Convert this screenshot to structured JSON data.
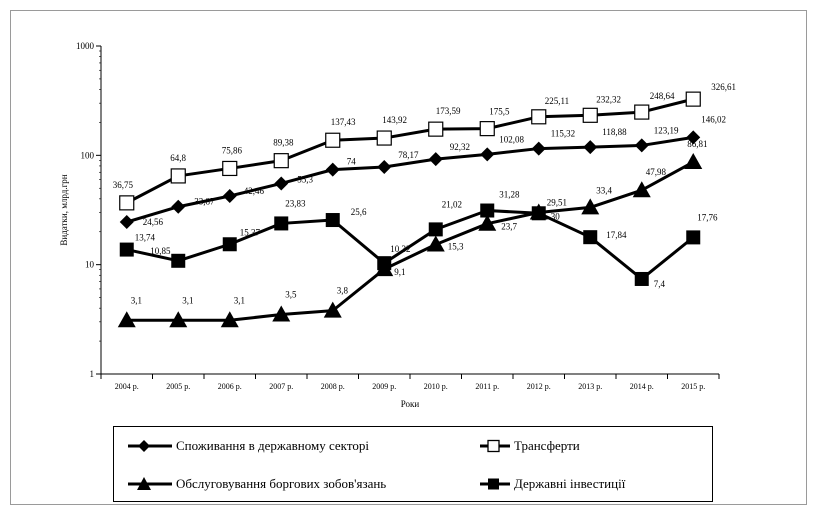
{
  "chart_data": {
    "type": "line",
    "ylabel": "Видатки, млрд.грн",
    "xlabel": "Роки",
    "y_scale": "log",
    "ylim": [
      1,
      1000
    ],
    "y_ticks": [
      "1",
      "10",
      "100",
      "1000"
    ],
    "categories": [
      "2004 р.",
      "2005 р.",
      "2006 р.",
      "2007 р.",
      "2008 р.",
      "2009 р.",
      "2010 р.",
      "2011 р.",
      "2012 р.",
      "2013 р.",
      "2014 р.",
      "2015 р."
    ],
    "series": [
      {
        "name": "Споживання в державному секторі",
        "marker": "diamond",
        "values": [
          24.56,
          33.87,
          42.46,
          55.3,
          74,
          78.17,
          92.32,
          102.08,
          115.32,
          118.88,
          123.19,
          146.02
        ],
        "labels": [
          "24,56",
          "33,87",
          "42,46",
          "55,3",
          "74",
          "78,17",
          "92,32",
          "102,08",
          "115,32",
          "118,88",
          "123,19",
          "146,02"
        ]
      },
      {
        "name": "Трансферти",
        "marker": "open-square",
        "values": [
          36.75,
          64.8,
          75.86,
          89.38,
          137.43,
          143.92,
          173.59,
          175.5,
          225.11,
          232.32,
          248.64,
          326.61
        ],
        "labels": [
          "36,75",
          "64,8",
          "75,86",
          "89,38",
          "137,43",
          "143,92",
          "173,59",
          "175,5",
          "225,11",
          "232,32",
          "248,64",
          "326,61"
        ]
      },
      {
        "name": "Обслуговування боргових зобов'язань",
        "marker": "triangle",
        "values": [
          3.1,
          3.1,
          3.1,
          3.5,
          3.8,
          9.1,
          15.3,
          23.7,
          30,
          33.4,
          47.98,
          86.81
        ],
        "labels": [
          "3,1",
          "3,1",
          "3,1",
          "3,5",
          "3,8",
          "9,1",
          "15,3",
          "23,7",
          "30",
          "33,4",
          "47,98",
          "86,81"
        ]
      },
      {
        "name": "Державні інвестиції",
        "marker": "square",
        "values": [
          13.74,
          10.85,
          15.37,
          23.83,
          25.6,
          10.32,
          21.02,
          31.28,
          29.51,
          17.84,
          7.4,
          17.76
        ],
        "labels": [
          "13,74",
          "10,85",
          "15,37",
          "23,83",
          "25,6",
          "10,32",
          "21,02",
          "31,28",
          "29,51",
          "17,84",
          "7,4",
          "17,76"
        ]
      }
    ],
    "legend": {
      "position": "bottom",
      "items": [
        "Споживання в державному секторі",
        "Трансферти",
        "Обслуговування боргових зобов'язань",
        "Державні інвестиції"
      ]
    }
  }
}
